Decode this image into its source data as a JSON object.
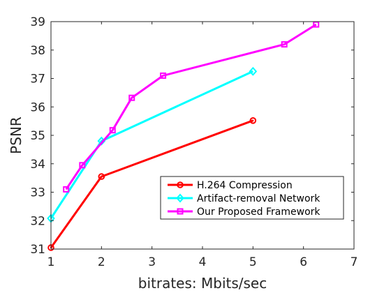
{
  "chart_data": {
    "type": "line",
    "xlabel": "bitrates: Mbits/sec",
    "ylabel": "PSNR",
    "xlim": [
      1,
      7
    ],
    "ylim": [
      31,
      39
    ],
    "xticks": [
      "1",
      "2",
      "3",
      "4",
      "5",
      "6",
      "7"
    ],
    "yticks": [
      "31",
      "32",
      "33",
      "34",
      "35",
      "36",
      "37",
      "38",
      "39"
    ],
    "grid": false,
    "legend_position": "bottom-right",
    "series": [
      {
        "name": "H.264 Compression",
        "color": "#ff0000",
        "marker": "hexagram",
        "points": [
          [
            1.0,
            31.05
          ],
          [
            2.0,
            33.55
          ],
          [
            5.0,
            35.52
          ]
        ]
      },
      {
        "name": "Artifact-removal Network",
        "color": "#00ffff",
        "marker": "diamond",
        "points": [
          [
            1.0,
            32.08
          ],
          [
            2.0,
            34.8
          ],
          [
            5.0,
            37.25
          ]
        ]
      },
      {
        "name": "Our Proposed Framework",
        "color": "#ff00ff",
        "marker": "square",
        "points": [
          [
            1.3,
            33.1
          ],
          [
            1.62,
            33.95
          ],
          [
            2.22,
            35.18
          ],
          [
            2.6,
            36.32
          ],
          [
            3.22,
            37.1
          ],
          [
            5.62,
            38.2
          ],
          [
            6.25,
            38.9
          ]
        ]
      }
    ]
  }
}
